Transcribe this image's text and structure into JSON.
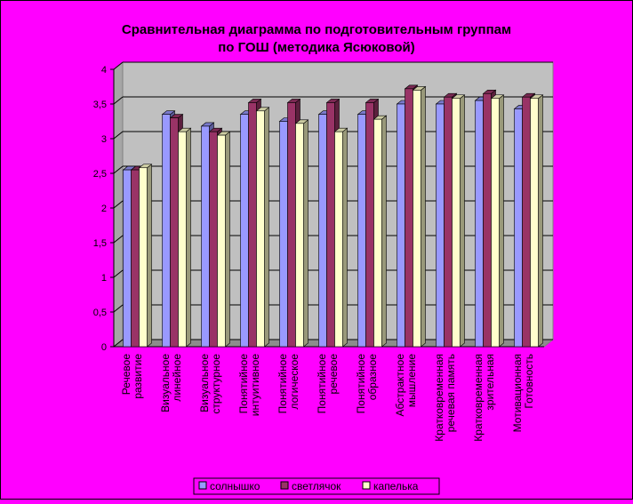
{
  "chart_data": {
    "type": "bar",
    "title_line1": "Сравнительная диаграмма по подготовительным группам",
    "title_line2": "по ГОШ (методика Ясюковой)",
    "categories": [
      [
        "Речевое",
        "развитие"
      ],
      [
        "Визуальное",
        "линейное"
      ],
      [
        "Визуальное",
        "структурное"
      ],
      [
        "Понятийное",
        "интуитивное"
      ],
      [
        "Понятийное",
        "логическое"
      ],
      [
        "Понятийное",
        "речевое"
      ],
      [
        "Понятийное",
        "образное"
      ],
      [
        "Абстрактное",
        "мышление"
      ],
      [
        "Кратковременная",
        "речевая память"
      ],
      [
        "Кратковременная",
        "зрительная"
      ],
      [
        "Мотивационная",
        "Готовность"
      ]
    ],
    "series": [
      {
        "name": "солнышко",
        "color": "#9999ff",
        "values": [
          2.55,
          3.35,
          3.18,
          3.35,
          3.25,
          3.35,
          3.35,
          3.5,
          3.5,
          3.55,
          3.43
        ]
      },
      {
        "name": "светлячок",
        "color": "#993366",
        "values": [
          2.55,
          3.3,
          3.1,
          3.52,
          3.52,
          3.52,
          3.52,
          3.72,
          3.6,
          3.65,
          3.6
        ]
      },
      {
        "name": "капелька",
        "color": "#ffffcc",
        "values": [
          2.58,
          3.1,
          3.05,
          3.4,
          3.22,
          3.1,
          3.28,
          3.7,
          3.58,
          3.58,
          3.58
        ]
      }
    ],
    "y_ticks": [
      "0",
      "0,5",
      "1",
      "1,5",
      "2",
      "2,5",
      "3",
      "3,5",
      "4"
    ],
    "ylim": [
      0,
      4
    ],
    "grid": true,
    "legend_position": "bottom"
  }
}
